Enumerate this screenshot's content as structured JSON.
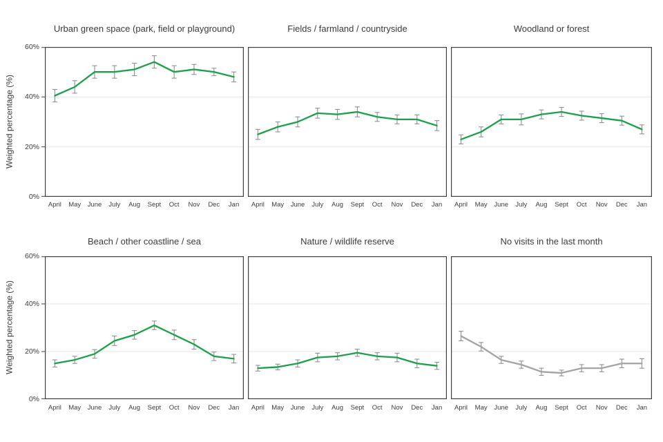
{
  "chart_data": {
    "type": "line",
    "layout": "2x3-small-multiples",
    "x": [
      "April",
      "May",
      "June",
      "July",
      "Aug",
      "Sept",
      "Oct",
      "Nov",
      "Dec",
      "Jan"
    ],
    "ylabel": "Weighted percentage (%)",
    "ylim": [
      0,
      60
    ],
    "yticks": [
      0,
      20,
      40,
      60
    ],
    "ytick_labels": [
      "0%",
      "20%",
      "40%",
      "60%"
    ],
    "gridlines": [
      20,
      40
    ],
    "grid": "horizontal-only",
    "error_bars": true,
    "legend": "none",
    "colors": {
      "green_series": "#16a347",
      "gray_series": "#a3a3a3",
      "error_bar": "#8f8f8f",
      "plot_border": "#3f3f3f",
      "gridline": "#e9e9e9",
      "text": "#3a3a3a"
    },
    "charts": [
      {
        "title": "Urban green space (park, field or playground)",
        "series_color": "#16a347",
        "values": [
          40.5,
          44,
          50,
          50,
          51,
          54,
          50,
          51,
          50,
          48
        ],
        "errors": [
          2.5,
          2.5,
          2.5,
          2.5,
          2.5,
          2.5,
          2.5,
          2,
          1.5,
          2
        ]
      },
      {
        "title": "Fields / farmland / countryside",
        "series_color": "#16a347",
        "values": [
          25,
          28,
          30,
          33.5,
          33,
          34,
          32,
          31,
          31,
          28.5
        ],
        "errors": [
          2,
          2,
          2,
          2,
          2,
          2,
          1.8,
          1.8,
          1.8,
          2
        ]
      },
      {
        "title": "Woodland or forest",
        "series_color": "#16a347",
        "values": [
          23,
          26,
          31,
          31,
          33,
          34,
          32.5,
          31.5,
          30.5,
          27
        ],
        "errors": [
          1.8,
          2,
          1.8,
          2.2,
          1.8,
          1.8,
          1.8,
          1.8,
          1.8,
          1.8
        ]
      },
      {
        "title": "Beach / other coastline / sea",
        "series_color": "#16a347",
        "values": [
          15,
          16.5,
          19,
          24.5,
          27,
          31,
          27,
          23,
          18,
          17
        ],
        "errors": [
          1.5,
          1.5,
          1.8,
          2,
          1.8,
          1.8,
          2,
          2,
          1.8,
          1.8
        ]
      },
      {
        "title": "Nature / wildlife reserve",
        "series_color": "#16a347",
        "values": [
          13,
          13.5,
          15,
          17.5,
          18,
          19.5,
          18,
          17.5,
          15,
          14
        ],
        "errors": [
          1.2,
          1.2,
          1.5,
          1.8,
          1.5,
          1.5,
          1.5,
          1.8,
          1.8,
          1.5
        ]
      },
      {
        "title": "No visits in the last month",
        "series_color": "#a3a3a3",
        "values": [
          26.5,
          22,
          16.5,
          14.5,
          11.5,
          11,
          13,
          13,
          15,
          15
        ],
        "errors": [
          2,
          1.8,
          1.5,
          1.5,
          1.5,
          1.2,
          1.5,
          1.5,
          1.8,
          2
        ]
      }
    ]
  }
}
